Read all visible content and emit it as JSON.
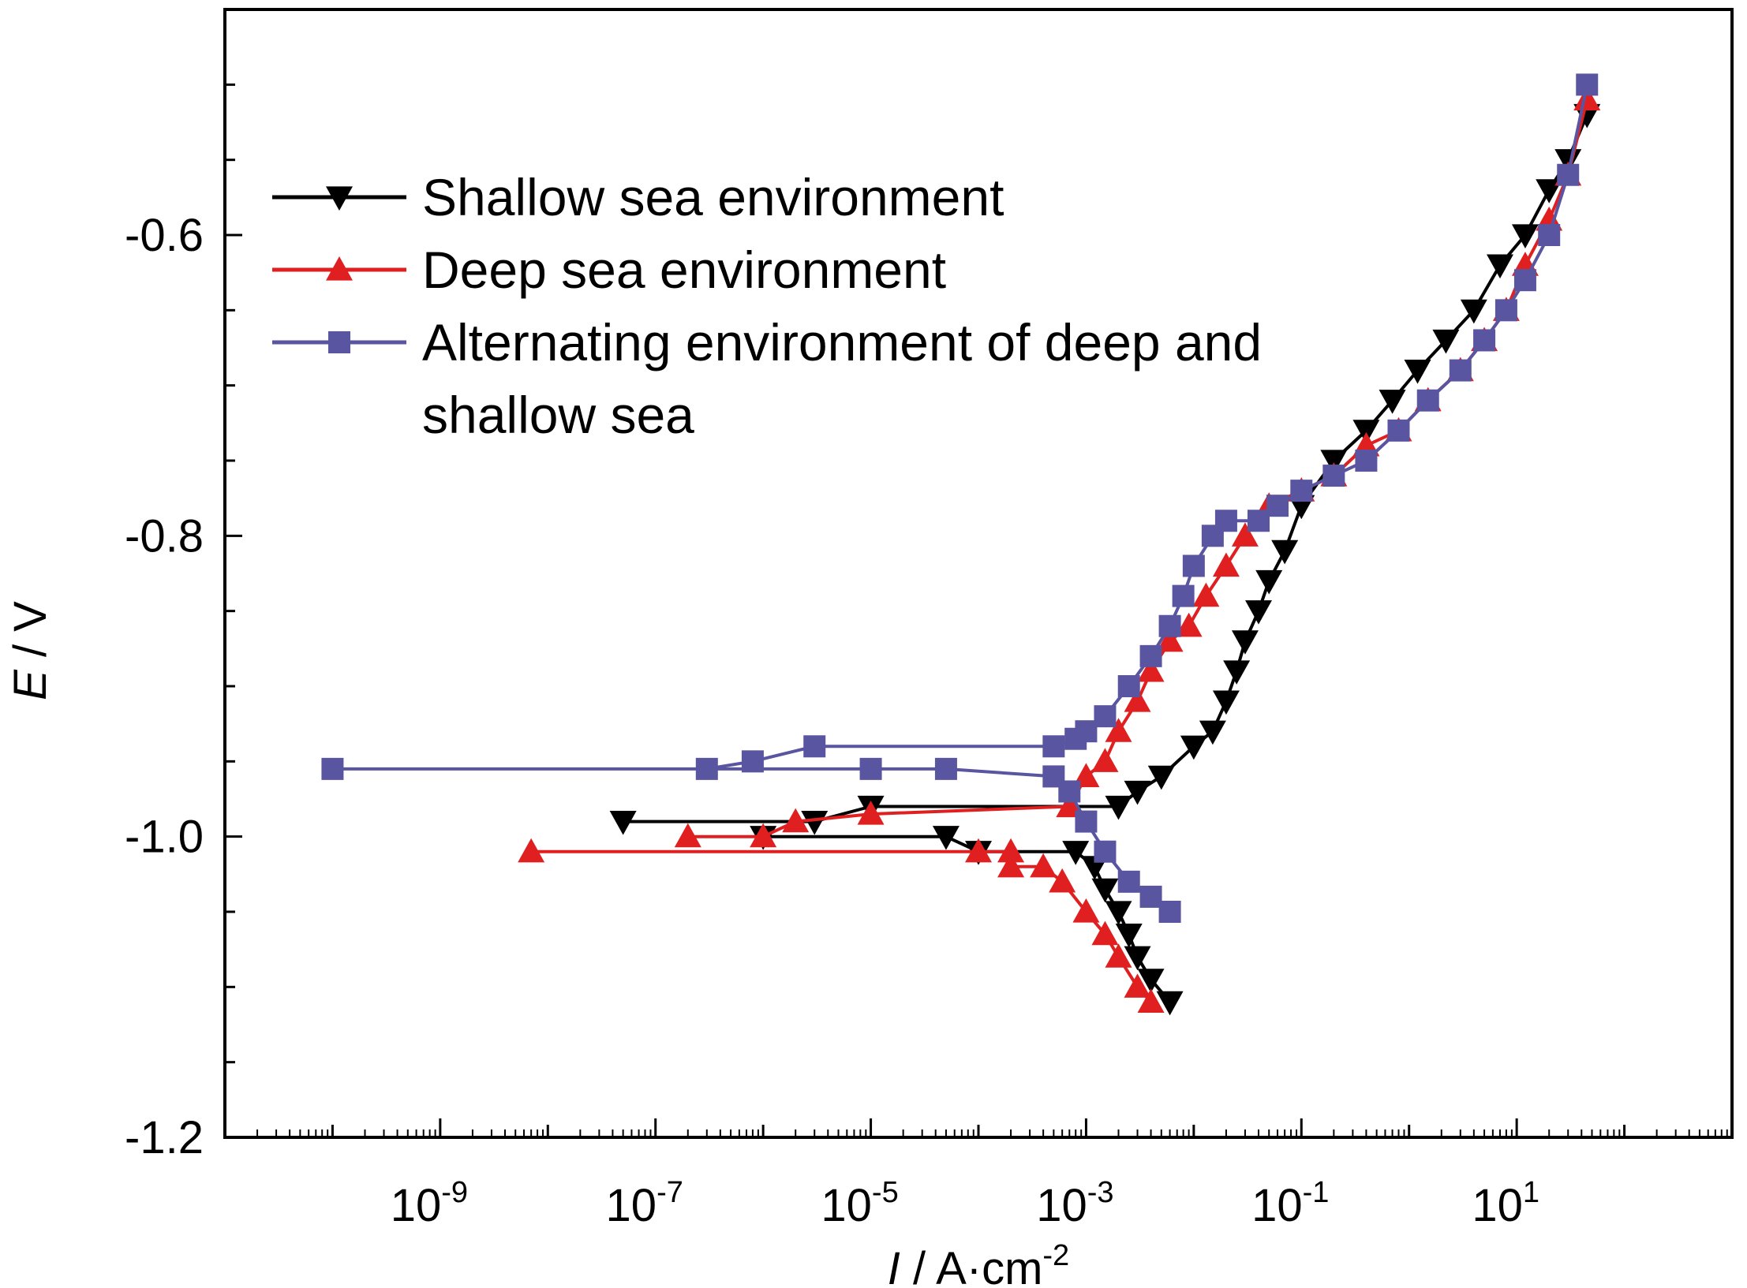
{
  "chart_data": {
    "type": "line",
    "xscale": "log",
    "x_unit_prefix": "I / A·cm",
    "x_unit_exp": "-2",
    "ylabel_italic": "E",
    "ylabel_rest": " / V",
    "xlim": [
      1e-11,
      1000
    ],
    "ylim": [
      -1.2,
      -0.45
    ],
    "y_ticks": [
      -1.2,
      -1.0,
      -0.8,
      -0.6
    ],
    "y_tick_labels": [
      "-1.2",
      "-1.0",
      "-0.8",
      "-0.6"
    ],
    "x_tick_labels": [
      {
        "exp": "-9",
        "value": 1e-09
      },
      {
        "exp": "-7",
        "value": 1e-07
      },
      {
        "exp": "-5",
        "value": 1e-05
      },
      {
        "exp": "-3",
        "value": 0.001
      },
      {
        "exp": "-1",
        "value": 0.1
      },
      {
        "exp": "1",
        "value": 10
      }
    ],
    "legend": {
      "placement": "top-left",
      "entries": [
        [
          "Shallow sea environment"
        ],
        [
          "Deep sea environment"
        ],
        [
          "Alternating environment of deep and",
          "shallow sea"
        ]
      ]
    },
    "series": [
      {
        "name": "Shallow sea environment",
        "color": "#000000",
        "marker": "triangle-down",
        "cathodic": [
          [
            0.006,
            -1.11
          ],
          [
            0.004,
            -1.095
          ],
          [
            0.003,
            -1.08
          ],
          [
            0.0025,
            -1.065
          ],
          [
            0.002,
            -1.05
          ],
          [
            0.0015,
            -1.035
          ],
          [
            0.0012,
            -1.02
          ],
          [
            0.0008,
            -1.01
          ],
          [
            0.0001,
            -1.01
          ],
          [
            5e-05,
            -1.0
          ],
          [
            1e-06,
            -1.0
          ]
        ],
        "anodic": [
          [
            5e-08,
            -0.99
          ],
          [
            3e-06,
            -0.99
          ],
          [
            1e-05,
            -0.98
          ],
          [
            0.002,
            -0.98
          ],
          [
            0.003,
            -0.97
          ],
          [
            0.005,
            -0.96
          ],
          [
            0.01,
            -0.94
          ],
          [
            0.015,
            -0.93
          ],
          [
            0.02,
            -0.91
          ],
          [
            0.025,
            -0.89
          ],
          [
            0.03,
            -0.87
          ],
          [
            0.04,
            -0.85
          ],
          [
            0.05,
            -0.83
          ],
          [
            0.07,
            -0.81
          ],
          [
            0.1,
            -0.78
          ],
          [
            0.2,
            -0.75
          ],
          [
            0.4,
            -0.73
          ],
          [
            0.7,
            -0.71
          ],
          [
            1.2,
            -0.69
          ],
          [
            2.2,
            -0.67
          ],
          [
            4,
            -0.65
          ],
          [
            7,
            -0.62
          ],
          [
            12,
            -0.6
          ],
          [
            20,
            -0.57
          ],
          [
            30,
            -0.55
          ],
          [
            45,
            -0.52
          ]
        ]
      },
      {
        "name": "Deep sea environment",
        "color": "#e02020",
        "marker": "triangle-up",
        "cathodic": [
          [
            0.004,
            -1.11
          ],
          [
            0.003,
            -1.1
          ],
          [
            0.002,
            -1.08
          ],
          [
            0.0015,
            -1.065
          ],
          [
            0.001,
            -1.05
          ],
          [
            0.0006,
            -1.03
          ],
          [
            0.0004,
            -1.02
          ],
          [
            0.0002,
            -1.02
          ],
          [
            0.0002,
            -1.01
          ],
          [
            0.0001,
            -1.01
          ],
          [
            7e-09,
            -1.01
          ]
        ],
        "anodic": [
          [
            2e-07,
            -1.0
          ],
          [
            1e-06,
            -1.0
          ],
          [
            2e-06,
            -0.99
          ],
          [
            1e-05,
            -0.985
          ],
          [
            0.0007,
            -0.98
          ],
          [
            0.001,
            -0.96
          ],
          [
            0.0015,
            -0.95
          ],
          [
            0.002,
            -0.93
          ],
          [
            0.003,
            -0.91
          ],
          [
            0.004,
            -0.89
          ],
          [
            0.006,
            -0.87
          ],
          [
            0.009,
            -0.86
          ],
          [
            0.013,
            -0.84
          ],
          [
            0.02,
            -0.82
          ],
          [
            0.03,
            -0.8
          ],
          [
            0.05,
            -0.78
          ],
          [
            0.1,
            -0.77
          ],
          [
            0.2,
            -0.76
          ],
          [
            0.4,
            -0.74
          ],
          [
            0.8,
            -0.73
          ],
          [
            1.5,
            -0.71
          ],
          [
            3,
            -0.69
          ],
          [
            5,
            -0.67
          ],
          [
            8,
            -0.65
          ],
          [
            12,
            -0.62
          ],
          [
            20,
            -0.59
          ],
          [
            30,
            -0.56
          ],
          [
            45,
            -0.51
          ]
        ]
      },
      {
        "name": "Alternating environment of deep and shallow sea",
        "color": "#5a55a0",
        "marker": "square",
        "cathodic": [
          [
            0.006,
            -1.05
          ],
          [
            0.004,
            -1.04
          ],
          [
            0.0025,
            -1.03
          ],
          [
            0.0015,
            -1.01
          ],
          [
            0.001,
            -0.99
          ],
          [
            0.0007,
            -0.97
          ],
          [
            0.0005,
            -0.96
          ],
          [
            5e-05,
            -0.955
          ],
          [
            1e-05,
            -0.955
          ],
          [
            1e-10,
            -0.955
          ]
        ],
        "anodic": [
          [
            3e-07,
            -0.955
          ],
          [
            8e-07,
            -0.95
          ],
          [
            3e-06,
            -0.94
          ],
          [
            0.0005,
            -0.94
          ],
          [
            0.0008,
            -0.935
          ],
          [
            0.001,
            -0.93
          ],
          [
            0.0015,
            -0.92
          ],
          [
            0.0025,
            -0.9
          ],
          [
            0.004,
            -0.88
          ],
          [
            0.006,
            -0.86
          ],
          [
            0.008,
            -0.84
          ],
          [
            0.01,
            -0.82
          ],
          [
            0.015,
            -0.8
          ],
          [
            0.02,
            -0.79
          ],
          [
            0.04,
            -0.79
          ],
          [
            0.06,
            -0.78
          ],
          [
            0.1,
            -0.77
          ],
          [
            0.2,
            -0.76
          ],
          [
            0.4,
            -0.75
          ],
          [
            0.8,
            -0.73
          ],
          [
            1.5,
            -0.71
          ],
          [
            3,
            -0.69
          ],
          [
            5,
            -0.67
          ],
          [
            8,
            -0.65
          ],
          [
            12,
            -0.63
          ],
          [
            20,
            -0.6
          ],
          [
            30,
            -0.56
          ],
          [
            45,
            -0.5
          ]
        ]
      }
    ]
  }
}
